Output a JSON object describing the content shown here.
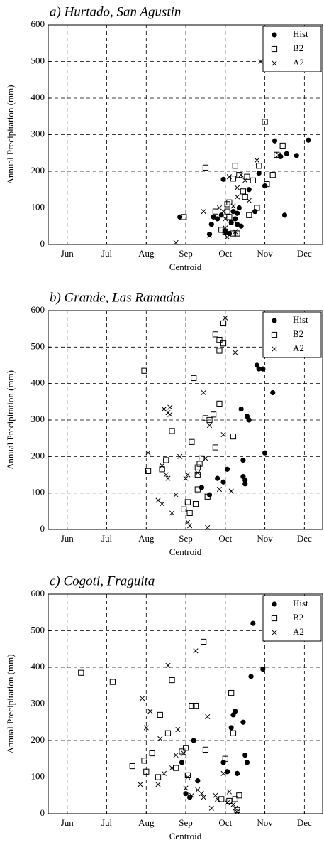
{
  "chart_data": [
    {
      "type": "scatter",
      "title": "a) Hurtado, San Agustin",
      "xlabel": "Centroid",
      "ylabel": "Annual Precipitation (mm)",
      "xlim": [
        5.52,
        12.46
      ],
      "ylim": [
        0,
        600
      ],
      "xticks": [
        {
          "value": 6,
          "label": "Jun"
        },
        {
          "value": 7,
          "label": "Jul"
        },
        {
          "value": 8,
          "label": "Aug"
        },
        {
          "value": 9,
          "label": "Sep"
        },
        {
          "value": 10,
          "label": "Oct"
        },
        {
          "value": 11,
          "label": "Nov"
        },
        {
          "value": 12,
          "label": "Dec"
        }
      ],
      "yticks": [
        0,
        100,
        200,
        300,
        400,
        500,
        600
      ],
      "grid": true,
      "legend": "upper right",
      "series": [
        {
          "name": "Hist",
          "color": "#000000",
          "marker": "circle",
          "x": [
            8.85,
            9.6,
            9.65,
            9.7,
            9.8,
            9.9,
            9.95,
            10.0,
            10.1,
            10.15,
            10.2,
            10.25,
            10.3,
            10.35,
            10.4,
            10.6,
            10.75,
            10.85,
            11.0,
            11.25,
            11.4,
            11.55,
            11.8,
            12.1,
            11.5,
            10.3
          ],
          "values": [
            75,
            28,
            55,
            75,
            70,
            80,
            178,
            35,
            30,
            60,
            90,
            70,
            55,
            100,
            50,
            150,
            90,
            195,
            160,
            283,
            240,
            248,
            243,
            285,
            80,
            85
          ]
        },
        {
          "name": "B2",
          "color": "#000000",
          "marker": "square",
          "x": [
            8.95,
            9.5,
            9.75,
            9.9,
            10.0,
            10.05,
            10.1,
            10.2,
            10.25,
            10.3,
            10.35,
            10.45,
            10.5,
            10.55,
            10.6,
            10.7,
            10.8,
            10.85,
            11.0,
            11.05,
            11.2,
            11.3,
            11.45,
            10.2,
            10.1,
            10.05
          ],
          "values": [
            75,
            210,
            90,
            40,
            35,
            110,
            75,
            30,
            215,
            30,
            190,
            145,
            130,
            185,
            80,
            175,
            100,
            215,
            335,
            165,
            190,
            245,
            270,
            180,
            115,
            90
          ]
        },
        {
          "name": "A2",
          "color": "#000000",
          "marker": "x",
          "x": [
            8.75,
            9.45,
            9.6,
            9.85,
            9.95,
            10.0,
            10.05,
            10.1,
            10.15,
            10.2,
            10.3,
            10.4,
            10.5,
            10.6,
            10.8,
            10.9,
            11.35,
            10.3,
            10.0,
            10.25
          ],
          "values": [
            5,
            90,
            25,
            100,
            90,
            70,
            20,
            185,
            60,
            105,
            155,
            190,
            175,
            120,
            230,
            500,
            245,
            130,
            45,
            35
          ]
        }
      ]
    },
    {
      "type": "scatter",
      "title": "b) Grande, Las Ramadas",
      "xlabel": "Centroid",
      "ylabel": "Annual Precipitation (mm)",
      "xlim": [
        5.52,
        12.46
      ],
      "ylim": [
        0,
        600
      ],
      "xticks": [
        {
          "value": 6,
          "label": "Jun"
        },
        {
          "value": 7,
          "label": "Jul"
        },
        {
          "value": 8,
          "label": "Aug"
        },
        {
          "value": 9,
          "label": "Sep"
        },
        {
          "value": 10,
          "label": "Oct"
        },
        {
          "value": 11,
          "label": "Nov"
        },
        {
          "value": 12,
          "label": "Dec"
        }
      ],
      "yticks": [
        0,
        100,
        200,
        300,
        400,
        500,
        600
      ],
      "grid": true,
      "legend": "upper right",
      "series": [
        {
          "name": "Hist",
          "color": "#000000",
          "marker": "circle",
          "x": [
            9.4,
            9.6,
            9.8,
            9.95,
            10.05,
            10.4,
            10.45,
            10.5,
            10.5,
            10.55,
            10.6,
            10.45,
            10.8,
            10.85,
            10.95,
            11.0,
            11.2
          ],
          "values": [
            115,
            95,
            140,
            130,
            165,
            330,
            145,
            125,
            135,
            310,
            300,
            190,
            450,
            440,
            440,
            210,
            375
          ]
        },
        {
          "name": "B2",
          "color": "#000000",
          "marker": "square",
          "x": [
            7.95,
            8.05,
            8.4,
            8.5,
            8.65,
            8.95,
            9.05,
            9.1,
            9.15,
            9.2,
            9.25,
            9.3,
            9.3,
            9.35,
            9.4,
            9.5,
            9.6,
            9.7,
            9.75,
            9.75,
            9.85,
            9.85,
            9.95,
            9.95,
            9.85,
            9.55,
            10.2,
            9.3
          ],
          "values": [
            435,
            160,
            165,
            190,
            270,
            55,
            75,
            45,
            240,
            415,
            70,
            150,
            170,
            180,
            195,
            305,
            300,
            315,
            225,
            535,
            520,
            490,
            510,
            565,
            345,
            90,
            255,
            110
          ]
        },
        {
          "name": "A2",
          "color": "#000000",
          "marker": "x",
          "x": [
            8.05,
            8.3,
            8.4,
            8.4,
            8.45,
            8.5,
            8.55,
            8.6,
            8.6,
            8.55,
            8.65,
            8.75,
            8.85,
            9.0,
            9.05,
            9.05,
            9.1,
            9.3,
            9.45,
            9.5,
            9.6,
            9.85,
            9.95,
            10.0,
            10.15,
            10.25,
            9.55
          ],
          "values": [
            210,
            80,
            70,
            175,
            330,
            150,
            320,
            335,
            315,
            140,
            45,
            95,
            200,
            140,
            150,
            20,
            10,
            155,
            375,
            195,
            285,
            110,
            260,
            580,
            105,
            485,
            5
          ]
        }
      ]
    },
    {
      "type": "scatter",
      "title": "c) Cogoti, Fraguita",
      "xlabel": "Centroid",
      "ylabel": "Annual Precipitation (mm)",
      "xlim": [
        5.52,
        12.46
      ],
      "ylim": [
        0,
        600
      ],
      "xticks": [
        {
          "value": 6,
          "label": "Jun"
        },
        {
          "value": 7,
          "label": "Jul"
        },
        {
          "value": 8,
          "label": "Aug"
        },
        {
          "value": 9,
          "label": "Sep"
        },
        {
          "value": 10,
          "label": "Oct"
        },
        {
          "value": 11,
          "label": "Nov"
        },
        {
          "value": 12,
          "label": "Dec"
        }
      ],
      "yticks": [
        0,
        100,
        200,
        300,
        400,
        500,
        600
      ],
      "grid": true,
      "legend": "upper right",
      "series": [
        {
          "name": "Hist",
          "color": "#000000",
          "marker": "circle",
          "x": [
            8.9,
            9.0,
            9.1,
            9.2,
            9.3,
            9.95,
            10.05,
            10.15,
            10.2,
            10.25,
            10.3,
            10.45,
            10.5,
            10.55,
            10.65,
            10.7,
            10.95
          ],
          "values": [
            140,
            55,
            45,
            200,
            90,
            140,
            115,
            235,
            270,
            280,
            110,
            250,
            160,
            140,
            375,
            520,
            395
          ]
        },
        {
          "name": "B2",
          "color": "#000000",
          "marker": "square",
          "x": [
            6.35,
            7.15,
            7.65,
            7.95,
            8.0,
            8.15,
            8.3,
            8.35,
            8.55,
            8.65,
            8.75,
            8.9,
            9.0,
            9.05,
            9.15,
            9.25,
            9.45,
            9.5,
            9.9,
            10.0,
            10.1,
            10.15,
            10.2,
            10.25,
            10.35,
            10.3
          ],
          "values": [
            385,
            360,
            130,
            145,
            115,
            165,
            100,
            270,
            220,
            365,
            125,
            170,
            180,
            105,
            295,
            295,
            470,
            175,
            40,
            150,
            35,
            330,
            220,
            40,
            50,
            10
          ]
        },
        {
          "name": "A2",
          "color": "#000000",
          "marker": "x",
          "x": [
            7.85,
            7.9,
            8.0,
            8.1,
            8.3,
            8.35,
            8.45,
            8.55,
            8.65,
            8.75,
            8.8,
            8.95,
            9.0,
            9.05,
            9.15,
            9.25,
            9.4,
            9.45,
            9.55,
            9.65,
            9.75,
            9.8,
            9.95,
            10.05,
            10.1,
            10.2,
            10.25,
            10.3,
            9.3
          ],
          "values": [
            80,
            315,
            235,
            280,
            80,
            205,
            110,
            405,
            125,
            160,
            230,
            165,
            70,
            100,
            50,
            445,
            55,
            45,
            265,
            15,
            50,
            40,
            110,
            30,
            60,
            25,
            15,
            5,
            65
          ]
        }
      ]
    }
  ]
}
